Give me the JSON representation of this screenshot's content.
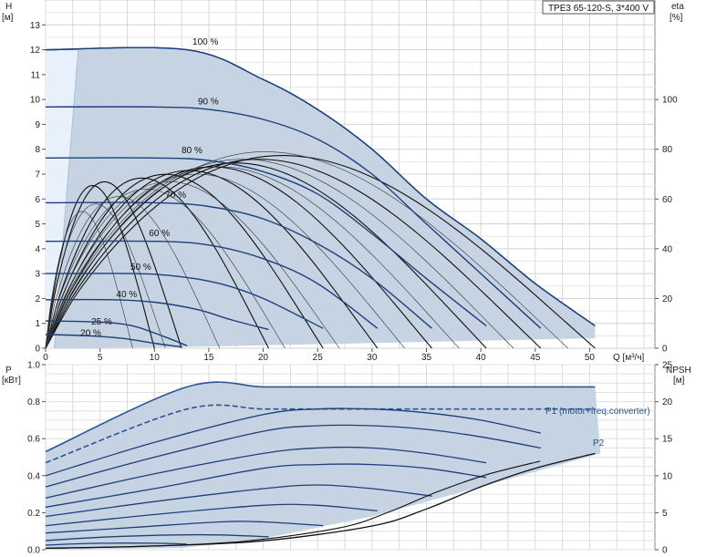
{
  "chart_data": [
    {
      "type": "line",
      "title": "TPE3 65-120-S, 3*400 V",
      "xlabel": "Q [м³/ч]",
      "ylabel_left_top": "H",
      "ylabel_left_unit": "[м]",
      "ylabel_right_top": "eta",
      "ylabel_right_unit": "[%]",
      "xlim": [
        0,
        56
      ],
      "ylim": [
        0,
        14
      ],
      "ylim_right": [
        0,
        140
      ],
      "x_ticks": [
        "0",
        "5",
        "10",
        "15",
        "20",
        "25",
        "30",
        "35",
        "40",
        "45",
        "50"
      ],
      "y_ticks": [
        "0",
        "1",
        "2",
        "3",
        "4",
        "5",
        "6",
        "7",
        "8",
        "9",
        "10",
        "11",
        "12",
        "13"
      ],
      "y_right_ticks": [
        "0",
        "20",
        "40",
        "60",
        "80",
        "100"
      ],
      "grid": true,
      "head_curves": [
        {
          "name": "100 %",
          "shutoff": 12.0,
          "x": [
            0,
            13,
            20,
            25,
            30,
            35,
            40,
            45,
            50.5
          ],
          "y": [
            12.0,
            12.0,
            10.8,
            9.6,
            8.0,
            6.0,
            4.4,
            2.6,
            0.9
          ]
        },
        {
          "name": "90 %",
          "shutoff": 9.7,
          "x": [
            0,
            10,
            15,
            20,
            25,
            30,
            35,
            40,
            45.5
          ],
          "y": [
            9.7,
            9.7,
            9.6,
            9.2,
            8.4,
            7.0,
            5.0,
            3.0,
            0.8
          ]
        },
        {
          "name": "80 %",
          "shutoff": 7.65,
          "x": [
            0,
            10,
            15,
            20,
            25,
            30,
            35,
            40.5
          ],
          "y": [
            7.65,
            7.65,
            7.55,
            7.1,
            6.2,
            4.6,
            2.8,
            0.9
          ]
        },
        {
          "name": "70 %",
          "shutoff": 5.85,
          "x": [
            0,
            10,
            15,
            20,
            25,
            30,
            35.5
          ],
          "y": [
            5.85,
            5.85,
            5.7,
            5.2,
            4.2,
            2.8,
            0.8
          ]
        },
        {
          "name": "60 %",
          "shutoff": 4.3,
          "x": [
            0,
            10,
            15,
            20,
            25,
            30.5
          ],
          "y": [
            4.3,
            4.3,
            4.15,
            3.6,
            2.6,
            0.8
          ]
        },
        {
          "name": "50 %",
          "shutoff": 3.0,
          "x": [
            0,
            8,
            12,
            16,
            20,
            25.5
          ],
          "y": [
            3.0,
            3.0,
            2.9,
            2.6,
            2.0,
            0.8
          ]
        },
        {
          "name": "40 %",
          "shutoff": 1.95,
          "x": [
            0,
            6,
            10,
            14,
            17,
            20.5
          ],
          "y": [
            1.95,
            1.95,
            1.85,
            1.55,
            1.15,
            0.75
          ]
        },
        {
          "name": "25 %",
          "shutoff": 1.1,
          "x": [
            0,
            5,
            8,
            11,
            13
          ],
          "y": [
            1.1,
            1.05,
            0.9,
            0.45,
            0.1
          ]
        },
        {
          "name": "20 %",
          "shutoff": 0.55,
          "x": [
            0,
            4,
            7,
            10,
            12.5
          ],
          "y": [
            0.55,
            0.5,
            0.4,
            0.2,
            0.05
          ]
        }
      ],
      "annotations": [
        "100 %",
        "90 %",
        "80 %",
        "70 %",
        "60 %",
        "50 %",
        "40 %",
        "25 %",
        "20 %"
      ]
    },
    {
      "type": "line",
      "ylabel_left_top": "P",
      "ylabel_left_unit": "[кВт]",
      "ylabel_right_top": "NPSH",
      "ylabel_right_unit": "[м]",
      "xlim": [
        0,
        56
      ],
      "ylim": [
        0,
        1.0
      ],
      "ylim_right": [
        0,
        25
      ],
      "y_ticks": [
        "0.0",
        "0.2",
        "0.4",
        "0.6",
        "0.8",
        "1.0"
      ],
      "y_right_ticks": [
        "0",
        "5",
        "10",
        "15",
        "20",
        "25"
      ],
      "grid": true,
      "series_labels": [
        "P1 (motor+freq.converter)",
        "P2"
      ],
      "power_curves": [
        {
          "x": [
            0,
            13,
            20,
            25,
            30,
            35,
            40,
            45,
            50.5
          ],
          "y": [
            0.53,
            0.88,
            0.88,
            0.88,
            0.88,
            0.88,
            0.88,
            0.88,
            0.88
          ]
        },
        {
          "x": [
            0,
            13,
            20,
            25,
            30,
            35,
            40,
            45,
            50.5
          ],
          "y": [
            0.47,
            0.76,
            0.76,
            0.76,
            0.76,
            0.76,
            0.76,
            0.76,
            0.76
          ]
        },
        {
          "x": [
            0,
            10,
            20,
            25,
            30,
            35,
            40,
            45.5
          ],
          "y": [
            0.4,
            0.58,
            0.73,
            0.76,
            0.76,
            0.74,
            0.7,
            0.63
          ]
        },
        {
          "x": [
            0,
            10,
            20,
            25,
            30,
            35,
            40,
            45.5
          ],
          "y": [
            0.34,
            0.5,
            0.64,
            0.67,
            0.67,
            0.65,
            0.61,
            0.55
          ]
        },
        {
          "x": [
            0,
            10,
            20,
            25,
            30,
            35,
            40.5
          ],
          "y": [
            0.28,
            0.41,
            0.52,
            0.55,
            0.55,
            0.52,
            0.47
          ]
        },
        {
          "x": [
            0,
            10,
            20,
            25,
            30,
            35,
            40.5
          ],
          "y": [
            0.23,
            0.33,
            0.44,
            0.46,
            0.46,
            0.44,
            0.39
          ]
        },
        {
          "x": [
            0,
            10,
            20,
            25,
            30,
            35.5
          ],
          "y": [
            0.18,
            0.26,
            0.33,
            0.35,
            0.33,
            0.29
          ]
        },
        {
          "x": [
            0,
            10,
            20,
            25,
            30.5
          ],
          "y": [
            0.13,
            0.19,
            0.24,
            0.24,
            0.21
          ]
        },
        {
          "x": [
            0,
            8,
            16,
            20,
            25.5
          ],
          "y": [
            0.09,
            0.12,
            0.15,
            0.15,
            0.13
          ]
        },
        {
          "x": [
            0,
            6,
            12,
            16,
            20.5
          ],
          "y": [
            0.05,
            0.07,
            0.08,
            0.08,
            0.07
          ]
        },
        {
          "x": [
            0,
            5,
            10,
            13
          ],
          "y": [
            0.025,
            0.035,
            0.035,
            0.03
          ]
        }
      ],
      "npsh_curve": {
        "x": [
          0,
          10,
          20,
          30,
          35,
          40,
          45,
          50.5
        ],
        "y": [
          0.2,
          0.5,
          1.2,
          3.2,
          5.5,
          8.5,
          11.0,
          13.0
        ]
      }
    }
  ]
}
